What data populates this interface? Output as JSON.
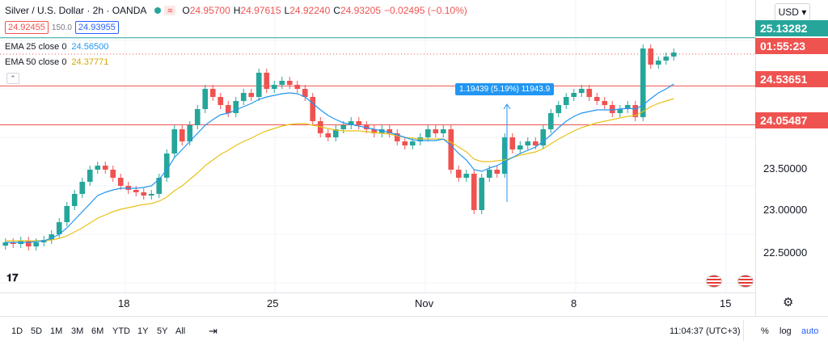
{
  "header": {
    "title": "Silver / U.S. Dollar · 2h · OANDA",
    "ohlc": [
      {
        "k": "O",
        "v": "24.95700"
      },
      {
        "k": "H",
        "v": "24.97615"
      },
      {
        "k": "L",
        "v": "24.92240"
      },
      {
        "k": "C",
        "v": "24.93205"
      },
      {
        "k": "",
        "v": "−0.02495 (−0.10%)"
      }
    ]
  },
  "quote": {
    "sell": "24.92455",
    "spread": "150.0",
    "buy": "24.93955"
  },
  "indicators": [
    {
      "label": "EMA 25 close 0",
      "value": "24.56500",
      "color": "#2196f3"
    },
    {
      "label": "EMA 50 close 0",
      "value": "24.37771",
      "color": "#e8c21a"
    }
  ],
  "price_scale": {
    "currency": "USD",
    "ticks": [
      "23.50000",
      "23.00000",
      "22.50000"
    ],
    "labels": [
      {
        "text": "25.13282",
        "color": "#26a69a"
      },
      {
        "text": "01:55:23",
        "color": "#ef5350"
      },
      {
        "text": "24.53651",
        "color": "#ef5350"
      },
      {
        "text": "24.05487",
        "color": "#ef5350"
      }
    ]
  },
  "measure": {
    "text": "1.19439 (5.19%) 11943.9"
  },
  "time_axis": {
    "labels": [
      "18",
      "25",
      "Nov",
      "8",
      "15"
    ]
  },
  "bottom": {
    "timeframes": [
      "1D",
      "5D",
      "1M",
      "3M",
      "6M",
      "YTD",
      "1Y",
      "5Y",
      "All"
    ],
    "clock": "11:04:37 (UTC+3)",
    "percent": "%",
    "log": "log",
    "auto": "auto"
  },
  "colors": {
    "up": "#26a69a",
    "down": "#ef5350",
    "ema25": "#2196f3",
    "ema50": "#e8c21a",
    "hline_red": "#ef5350",
    "hline_green": "#26a69a"
  },
  "chart_data": {
    "type": "candlestick",
    "instrument": "Silver / U.S. Dollar",
    "interval": "2h",
    "ylim": [
      22.0,
      25.3
    ],
    "horizontal_lines": [
      25.13282,
      24.53651,
      24.05487
    ],
    "close": [
      22.6,
      22.58,
      22.62,
      22.55,
      22.6,
      22.63,
      22.7,
      22.85,
      23.05,
      23.2,
      23.35,
      23.5,
      23.55,
      23.5,
      23.4,
      23.3,
      23.25,
      23.22,
      23.18,
      23.2,
      23.4,
      23.7,
      24.0,
      23.85,
      24.05,
      24.25,
      24.5,
      24.4,
      24.3,
      24.2,
      24.35,
      24.45,
      24.4,
      24.7,
      24.5,
      24.55,
      24.6,
      24.55,
      24.5,
      24.4,
      24.1,
      23.95,
      23.9,
      24.0,
      24.05,
      24.1,
      24.05,
      24.0,
      23.95,
      24.0,
      23.95,
      23.85,
      23.8,
      23.85,
      23.9,
      24.0,
      23.95,
      24.0,
      23.5,
      23.4,
      23.45,
      23.0,
      23.4,
      23.5,
      23.45,
      23.9,
      23.75,
      23.8,
      23.85,
      23.8,
      24.0,
      24.2,
      24.3,
      24.4,
      24.45,
      24.5,
      24.4,
      24.35,
      24.3,
      24.2,
      24.25,
      24.3,
      24.15,
      25.0,
      24.8,
      24.85,
      24.9,
      24.95
    ],
    "ema25": [
      22.6,
      22.6,
      22.6,
      22.6,
      22.61,
      22.62,
      22.65,
      22.7,
      22.78,
      22.88,
      22.98,
      23.08,
      23.18,
      23.22,
      23.25,
      23.27,
      23.27,
      23.27,
      23.28,
      23.3,
      23.38,
      23.5,
      23.65,
      23.75,
      23.85,
      23.95,
      24.05,
      24.12,
      24.18,
      24.2,
      24.24,
      24.28,
      24.32,
      24.37,
      24.4,
      24.42,
      24.44,
      24.45,
      24.44,
      24.4,
      24.32,
      24.24,
      24.17,
      24.12,
      24.08,
      24.06,
      24.04,
      24.02,
      24.0,
      23.98,
      23.96,
      23.93,
      23.9,
      23.87,
      23.86,
      23.86,
      23.86,
      23.88,
      23.8,
      23.7,
      23.62,
      23.5,
      23.48,
      23.52,
      23.55,
      23.6,
      23.65,
      23.7,
      23.74,
      23.78,
      23.85,
      23.93,
      24.02,
      24.1,
      24.16,
      24.2,
      24.22,
      24.24,
      24.24,
      24.24,
      24.25,
      24.26,
      24.25,
      24.3,
      24.38,
      24.45,
      24.5,
      24.56
    ],
    "ema50": [
      22.62,
      22.62,
      22.62,
      22.62,
      22.62,
      22.62,
      22.63,
      22.65,
      22.68,
      22.73,
      22.78,
      22.84,
      22.9,
      22.94,
      22.98,
      23.01,
      23.03,
      23.05,
      23.07,
      23.08,
      23.11,
      23.16,
      23.24,
      23.3,
      23.38,
      23.46,
      23.55,
      23.62,
      23.69,
      23.74,
      23.8,
      23.85,
      23.89,
      23.94,
      23.98,
      24.01,
      24.04,
      24.06,
      24.07,
      24.07,
      24.05,
      24.03,
      24.01,
      23.99,
      23.98,
      23.98,
      23.98,
      23.97,
      23.96,
      23.95,
      23.94,
      23.92,
      23.9,
      23.89,
      23.88,
      23.88,
      23.88,
      23.88,
      23.84,
      23.78,
      23.72,
      23.63,
      23.6,
      23.6,
      23.61,
      23.62,
      23.65,
      23.68,
      23.7,
      23.72,
      23.76,
      23.82,
      23.88,
      23.93,
      23.98,
      24.02,
      24.05,
      24.08,
      24.1,
      24.12,
      24.14,
      24.16,
      24.17,
      24.22,
      24.28,
      24.32,
      24.35,
      24.38
    ],
    "x_labels": [
      "18",
      "25",
      "Nov",
      "8",
      "15"
    ]
  }
}
